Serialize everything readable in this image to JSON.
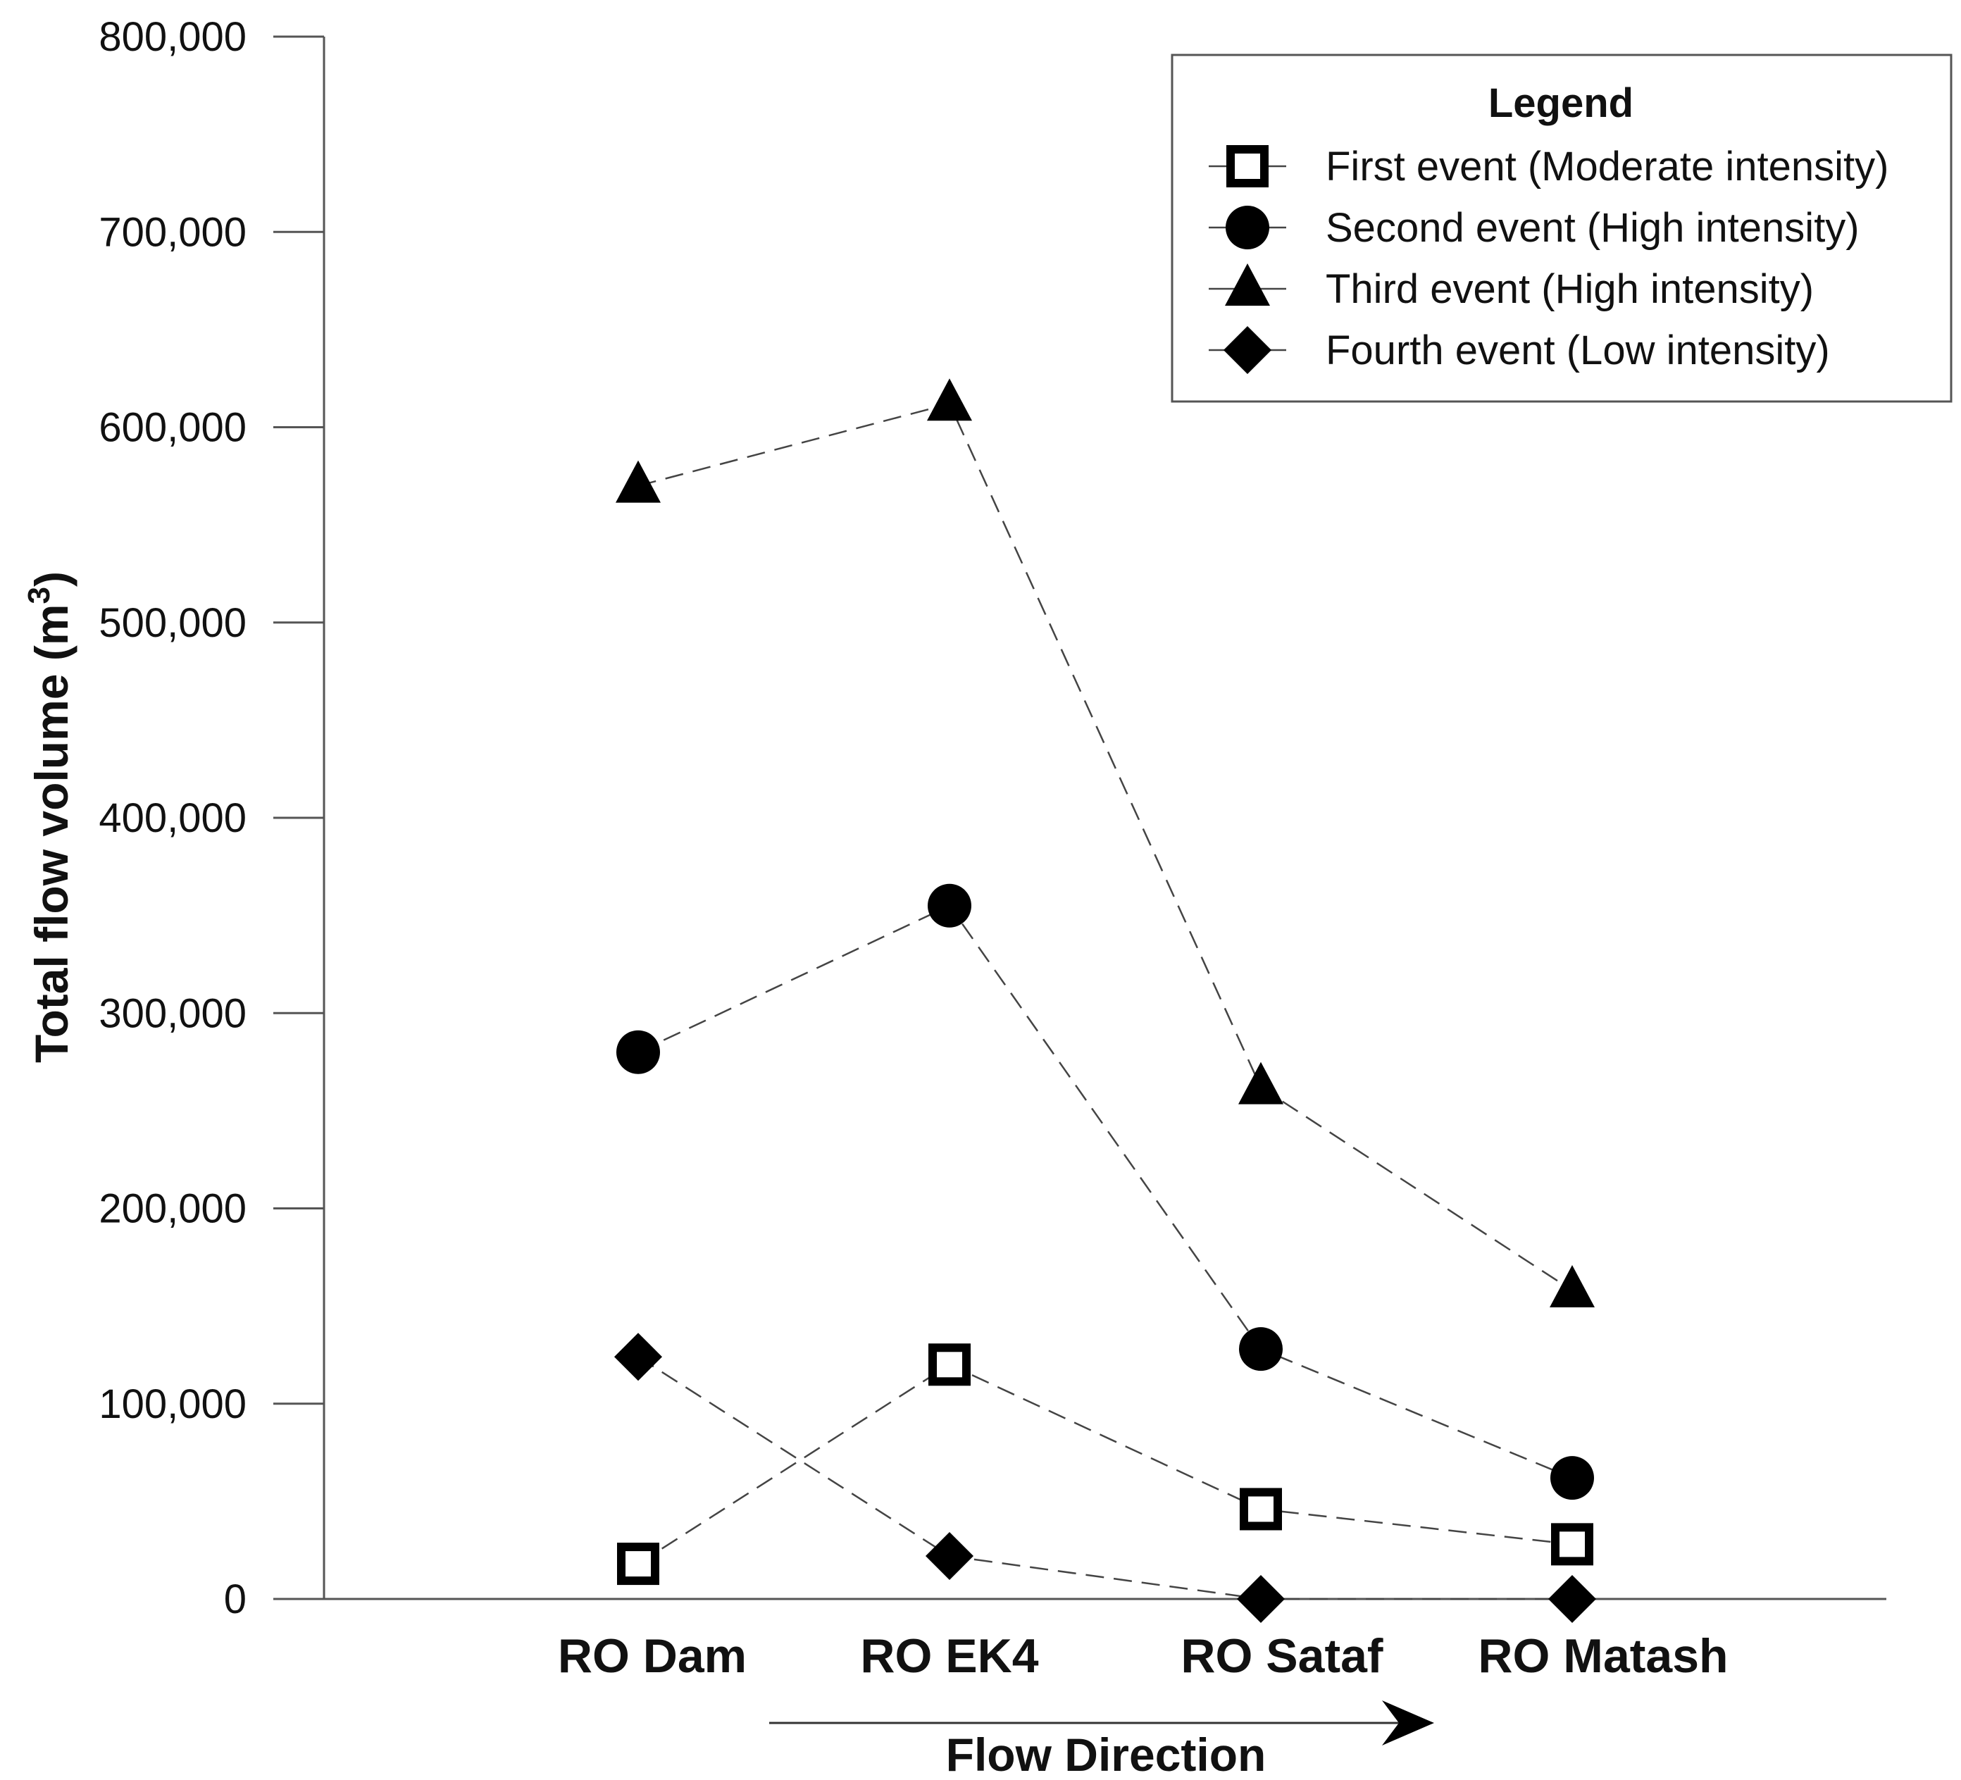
{
  "chart_data": {
    "type": "line",
    "title": "",
    "ylabel": "Total flow volume (m",
    "ylabel_superscript": "3",
    "ylabel_close": ")",
    "xlabel": "Flow Direction",
    "categories": [
      "RO Dam",
      "RO EK4",
      "RO Sataf",
      "RO Matash"
    ],
    "ylim": [
      0,
      800000
    ],
    "yticks": [
      "0",
      "100,000",
      "200,000",
      "300,000",
      "400,000",
      "500,000",
      "600,000",
      "700,000",
      "800,000"
    ],
    "ytick_values": [
      0,
      100000,
      200000,
      300000,
      400000,
      500000,
      600000,
      700000,
      800000
    ],
    "grid": false,
    "legend_position": "top-right",
    "legend_title": "Legend",
    "series": [
      {
        "name": "First event (Moderate intensity)",
        "marker": "square-open",
        "values": [
          18000,
          120000,
          46000,
          28000
        ]
      },
      {
        "name": "Second event (High intensity)",
        "marker": "circle",
        "values": [
          280000,
          355000,
          128000,
          62000
        ]
      },
      {
        "name": "Third event (High intensity)",
        "marker": "triangle",
        "values": [
          570000,
          612000,
          262000,
          158000
        ]
      },
      {
        "name": "Fourth event (Low intensity)",
        "marker": "diamond",
        "values": [
          124000,
          22000,
          0,
          0
        ]
      }
    ]
  },
  "colors": {
    "marker": "#000000",
    "line": "#444444",
    "axis": "#555555"
  }
}
